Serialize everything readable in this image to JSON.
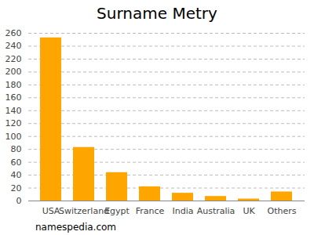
{
  "chart_data": {
    "type": "bar",
    "title": "Surname Metry",
    "caption": "namespedia.com",
    "categories": [
      "USA",
      "Switzerland",
      "Egypt",
      "France",
      "India",
      "Australia",
      "UK",
      "Others"
    ],
    "values": [
      253,
      83,
      44,
      22,
      12,
      7,
      3,
      14
    ],
    "color": "#ffa500",
    "ylim": [
      0,
      260
    ],
    "yticks": [
      0,
      20,
      40,
      60,
      80,
      100,
      120,
      140,
      160,
      180,
      200,
      220,
      240,
      260
    ],
    "grid": true
  }
}
